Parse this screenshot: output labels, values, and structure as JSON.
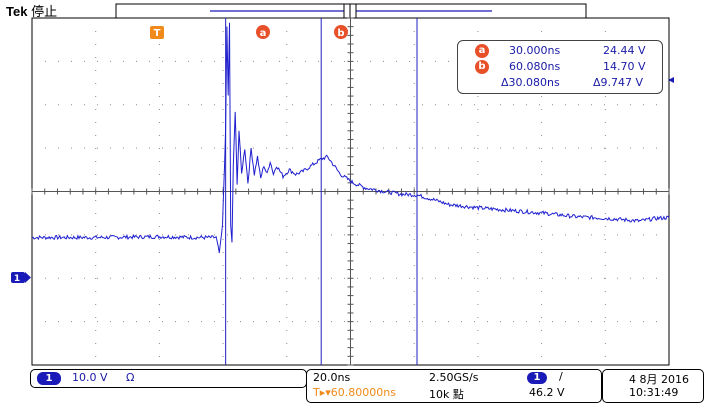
{
  "header": {
    "brand": "Tek",
    "status": "停止"
  },
  "trigger_marker": {
    "label": "T"
  },
  "cursor_labels": {
    "a": "a",
    "b": "b"
  },
  "channel_marker": {
    "label": "1"
  },
  "measurements": {
    "a_time": "30.000ns",
    "a_volt": "24.44 V",
    "b_time": "60.080ns",
    "b_volt": "14.70 V",
    "delta_time": "Δ30.080ns",
    "delta_volt": "Δ9.747 V"
  },
  "bottom": {
    "channel_num": "1",
    "scale": "10.0 V",
    "coupling_icon": "Ω",
    "timebase": "20.0ns",
    "sample_rate": "2.50GS/s",
    "trigger_channel": "1",
    "trigger_slope_icon": "/",
    "trigger_position": "T▸▾60.80000ns",
    "record_length": "10k 點",
    "trigger_level": "46.2 V",
    "date": "4 8月 2016",
    "time": "10:31:49"
  },
  "colors": {
    "trace": "#1f1fd0",
    "cursor": "#2020c0",
    "accent": "#e8502a",
    "grid": "#8a8a8a",
    "text_blue": "#1a1aa6"
  },
  "chart_data": {
    "type": "line",
    "title": "",
    "xlabel": "",
    "ylabel": "",
    "grid": true,
    "x_units": "ns",
    "y_units": "V",
    "x_div": 20,
    "y_div": 10,
    "xlim": [
      -60.8,
      139.2
    ],
    "ylim": [
      -40,
      40
    ],
    "cursors": {
      "a": 30.0,
      "b": 60.08
    },
    "series": [
      {
        "x": [
          -60.8,
          -40,
          -20,
          -10,
          -3.0,
          -2.0,
          -1.6,
          -1.0,
          0.0,
          0.4,
          0.8,
          1.2,
          1.6,
          2.0,
          2.4,
          3.0,
          3.6,
          4.2,
          5.0,
          6.0,
          7.0,
          8.0,
          9.0,
          10.0,
          11.0,
          12.0,
          13.0,
          14.0,
          15.0,
          16.0,
          18.0,
          20.0,
          22.0,
          24.0,
          26.0,
          28.0,
          30.0,
          32.0,
          34.0,
          36.0,
          40.0,
          44.0,
          50.0,
          55.0,
          60.0,
          65.0,
          70.0,
          80.0,
          90.0,
          100.0,
          110.0,
          120.0,
          130.0,
          135.0,
          139.2
        ],
        "y": [
          -10.6,
          -10.6,
          -10.4,
          -10.6,
          -10.6,
          -14.2,
          -12.0,
          -8.0,
          14.0,
          38.0,
          22.0,
          39.0,
          -8.0,
          -12.0,
          6.0,
          18.0,
          2.0,
          14.0,
          4.0,
          10.0,
          2.0,
          10.0,
          4.0,
          8.0,
          3.0,
          6.0,
          4.0,
          7.0,
          4.0,
          6.0,
          3.5,
          5.0,
          4.0,
          4.5,
          5.5,
          6.5,
          7.5,
          8.0,
          6.0,
          4.0,
          2.0,
          0.8,
          0.0,
          -0.6,
          -0.8,
          -1.8,
          -3.0,
          -3.8,
          -4.4,
          -5.0,
          -5.8,
          -6.2,
          -6.8,
          -6.2,
          -6.0
        ]
      }
    ]
  }
}
